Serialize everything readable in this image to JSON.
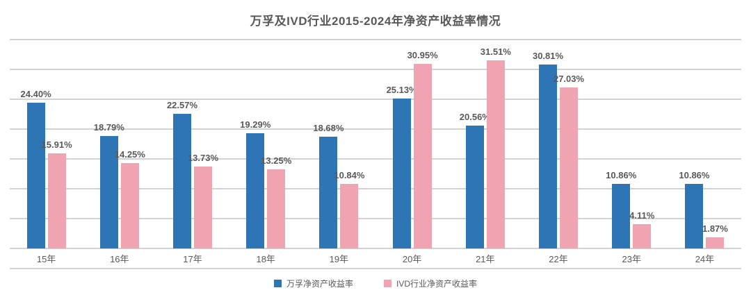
{
  "header": {
    "title": "万孚及IVD行业2015-2024年净资产收益率情况"
  },
  "chart_data": {
    "type": "bar",
    "title": "万孚及IVD行业2015-2024年净资产收益率情况",
    "categories": [
      "15年",
      "16年",
      "17年",
      "18年",
      "19年",
      "20年",
      "21年",
      "22年",
      "23年",
      "24年"
    ],
    "series": [
      {
        "name": "万孚净资产收益率",
        "color": "#2e75b6",
        "values": [
          24.4,
          18.79,
          22.57,
          19.29,
          18.68,
          25.13,
          20.56,
          30.81,
          10.86,
          10.86
        ],
        "labels": [
          "24.40%",
          "18.79%",
          "22.57%",
          "19.29%",
          "18.68%",
          "25.13%",
          "20.56%",
          "30.81%",
          "10.86%",
          "10.86%"
        ]
      },
      {
        "name": "IVD行业净资产收益率",
        "color": "#f0a3b1",
        "values": [
          15.91,
          14.25,
          13.73,
          13.25,
          10.84,
          30.95,
          31.51,
          27.03,
          4.11,
          1.87
        ],
        "labels": [
          "15.91%",
          "14.25%",
          "13.73%",
          "13.25%",
          "10.84%",
          "30.95%",
          "31.51%",
          "27.03%",
          "4.11%",
          "1.87%"
        ]
      }
    ],
    "xlabel": "",
    "ylabel": "",
    "ylim": [
      0,
      35
    ],
    "grid_step": 5,
    "grid": true,
    "legend_position": "bottom",
    "colors": {
      "title_text": "#595959",
      "label_text": "#595959",
      "gridline": "#d2d2d2",
      "background": "#ffffff"
    }
  }
}
